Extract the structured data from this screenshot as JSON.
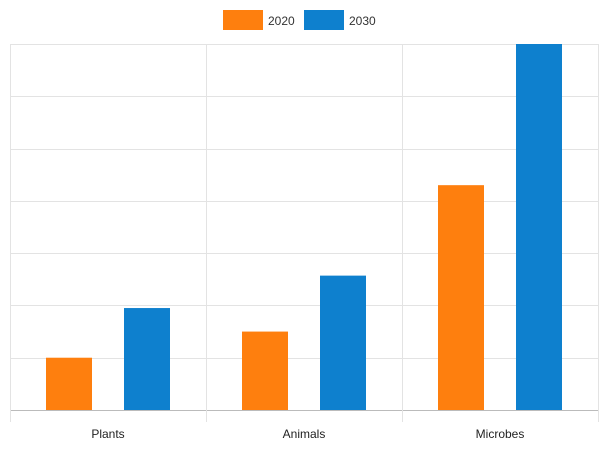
{
  "chart_data": {
    "type": "bar",
    "categories": [
      "Plants",
      "Animals",
      "Microbes"
    ],
    "series": [
      {
        "name": "2020",
        "values": [
          1.0,
          1.5,
          4.3
        ],
        "color": "#fe7f0e"
      },
      {
        "name": "2030",
        "values": [
          1.95,
          2.57,
          7.0
        ],
        "color": "#0e80ce"
      }
    ],
    "ylim": [
      0,
      7
    ],
    "y_gridlines": 7,
    "grid": true,
    "legend_position": "top-center",
    "title": "",
    "xlabel": "",
    "ylabel": ""
  }
}
